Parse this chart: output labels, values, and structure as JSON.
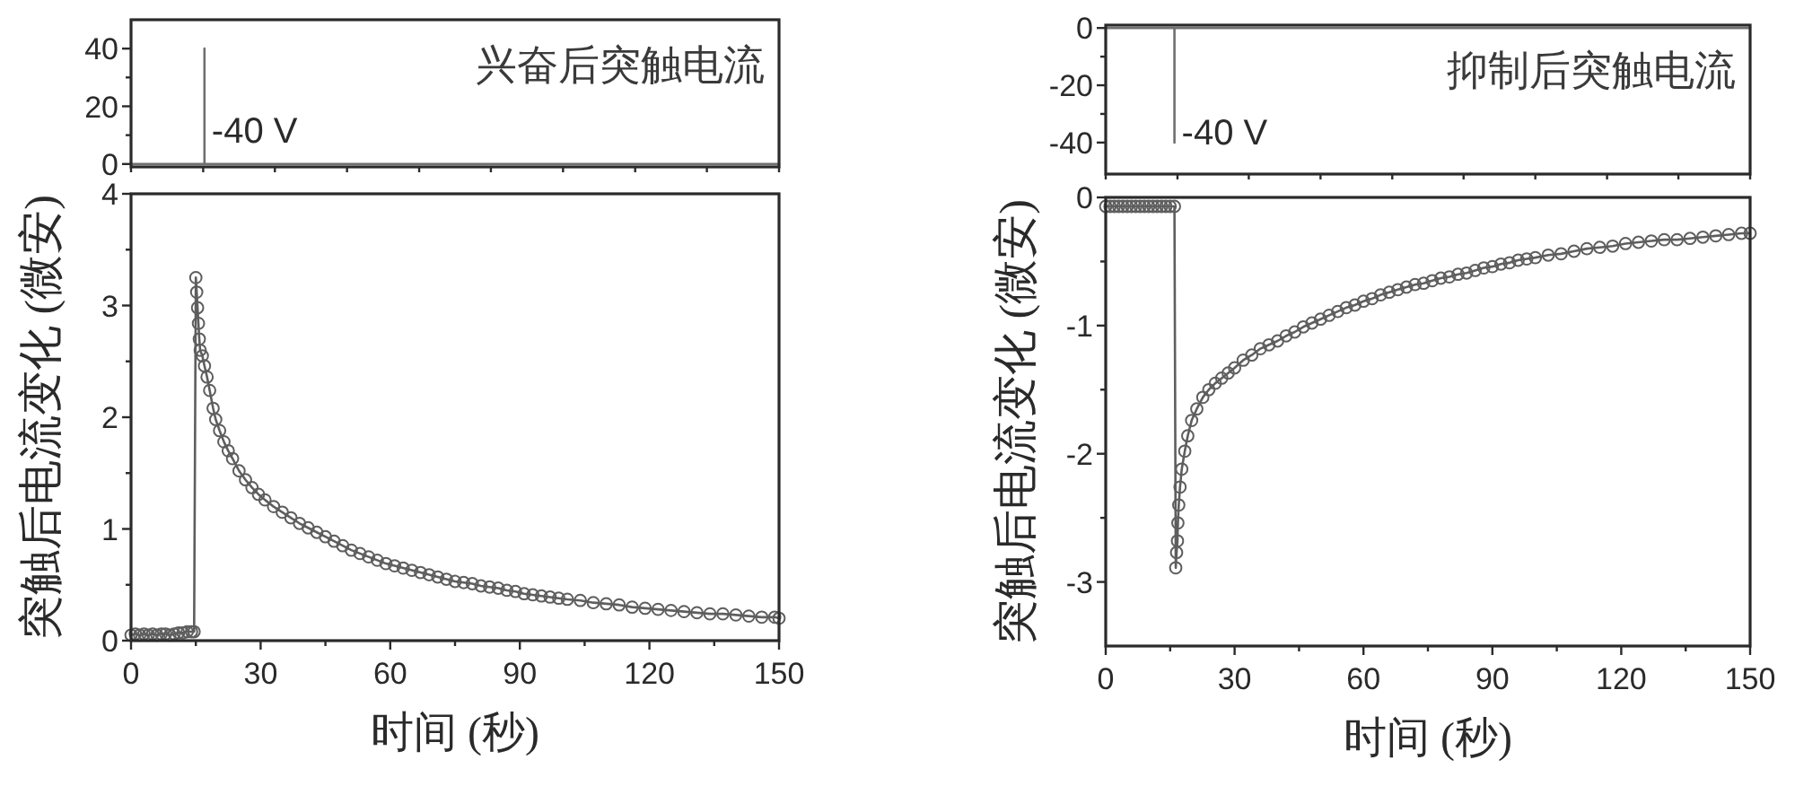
{
  "chart_data": [
    {
      "type": "line",
      "title": "兴奋后突触电流",
      "x": [
        0,
        17,
        17,
        17,
        150
      ],
      "values": [
        0,
        0,
        40,
        0,
        0
      ],
      "color": "#707070",
      "xlim": [
        0,
        150
      ],
      "xticks": [
        {
          "value": 0,
          "label": null
        },
        {
          "value": 16.7,
          "label": null
        },
        {
          "value": 33.3,
          "label": null
        },
        {
          "value": 50,
          "label": null
        },
        {
          "value": 66.7,
          "label": null
        },
        {
          "value": 83.3,
          "label": null
        },
        {
          "value": 100,
          "label": null
        },
        {
          "value": 116.7,
          "label": null
        },
        {
          "value": 133.3,
          "label": null
        },
        {
          "value": 150,
          "label": null
        }
      ],
      "ylim": [
        -1,
        50
      ],
      "yticks": [
        0,
        {
          "value": 10,
          "label": null
        },
        20,
        {
          "value": 30,
          "label": null
        },
        40
      ],
      "tick_labels": "y",
      "annotations": [
        {
          "text": "-40 V",
          "x": 17,
          "y": 12
        }
      ]
    },
    {
      "type": "line",
      "xlabel": "时间 (秒)",
      "ylabel": "突触后电流变化 (微安)",
      "marker": "circle",
      "color": "#5e5e5e",
      "x": [
        0,
        1,
        2,
        3,
        4,
        5,
        6,
        7,
        8,
        9,
        10,
        11,
        12,
        13,
        14,
        14.6,
        15,
        15.2,
        15.4,
        15.6,
        15.8,
        16,
        16.5,
        17,
        17.6,
        18.2,
        19,
        19.6,
        20.5,
        21.5,
        22.5,
        23.5,
        25,
        26.5,
        28,
        29.5,
        31,
        33,
        35,
        37,
        39,
        41,
        43,
        45,
        47,
        49,
        51,
        53,
        55,
        57,
        59,
        61,
        63,
        65,
        67,
        69,
        71,
        73,
        75,
        77,
        79,
        81,
        83,
        85,
        87,
        89,
        91,
        93,
        95,
        97,
        99,
        101,
        104,
        107,
        110,
        113,
        116,
        119,
        122,
        125,
        128,
        131,
        134,
        137,
        140,
        143,
        146,
        149,
        150
      ],
      "values": [
        0.05,
        0.06,
        0.05,
        0.06,
        0.05,
        0.06,
        0.05,
        0.06,
        0.06,
        0.05,
        0.06,
        0.07,
        0.07,
        0.08,
        0.08,
        0.08,
        3.25,
        3.12,
        2.98,
        2.84,
        2.7,
        2.6,
        2.55,
        2.46,
        2.36,
        2.24,
        2.08,
        1.98,
        1.88,
        1.78,
        1.7,
        1.63,
        1.52,
        1.44,
        1.37,
        1.31,
        1.26,
        1.2,
        1.15,
        1.1,
        1.05,
        1.01,
        0.97,
        0.93,
        0.89,
        0.85,
        0.81,
        0.78,
        0.75,
        0.72,
        0.69,
        0.67,
        0.65,
        0.63,
        0.61,
        0.59,
        0.57,
        0.55,
        0.53,
        0.52,
        0.51,
        0.49,
        0.48,
        0.47,
        0.45,
        0.44,
        0.42,
        0.41,
        0.4,
        0.39,
        0.38,
        0.37,
        0.36,
        0.34,
        0.33,
        0.32,
        0.3,
        0.29,
        0.28,
        0.27,
        0.26,
        0.25,
        0.24,
        0.24,
        0.23,
        0.22,
        0.21,
        0.21,
        0.2
      ],
      "xlim": [
        0,
        150
      ],
      "xticks": [
        0,
        {
          "value": 15,
          "label": null
        },
        30,
        {
          "value": 45,
          "label": null
        },
        60,
        {
          "value": 75,
          "label": null
        },
        90,
        {
          "value": 105,
          "label": null
        },
        120,
        {
          "value": 135,
          "label": null
        },
        150
      ],
      "ylim": [
        0,
        4
      ],
      "yticks": [
        0,
        {
          "value": 0.5,
          "label": null
        },
        1,
        {
          "value": 1.5,
          "label": null
        },
        2,
        {
          "value": 2.5,
          "label": null
        },
        3,
        {
          "value": 3.5,
          "label": null
        },
        4
      ]
    },
    {
      "type": "line",
      "title": "抑制后突触电流",
      "x": [
        0,
        16,
        16,
        16,
        150
      ],
      "values": [
        0,
        0,
        -40,
        0,
        0
      ],
      "color": "#707070",
      "xlim": [
        0,
        150
      ],
      "xticks": [
        {
          "value": 0,
          "label": null
        },
        {
          "value": 16.7,
          "label": null
        },
        {
          "value": 33.3,
          "label": null
        },
        {
          "value": 50,
          "label": null
        },
        {
          "value": 66.7,
          "label": null
        },
        {
          "value": 83.3,
          "label": null
        },
        {
          "value": 100,
          "label": null
        },
        {
          "value": 116.7,
          "label": null
        },
        {
          "value": 133.3,
          "label": null
        },
        {
          "value": 150,
          "label": null
        }
      ],
      "ylim": [
        -51,
        1
      ],
      "yticks": [
        -40,
        {
          "value": -30,
          "label": null
        },
        -20,
        {
          "value": -10,
          "label": null
        },
        0
      ],
      "tick_labels": "y",
      "annotations": [
        {
          "text": "-40 V",
          "x": 16,
          "y": -36
        }
      ]
    },
    {
      "type": "line",
      "xlabel": "时间 (秒)",
      "ylabel": "突触后电流变化 (微安)",
      "marker": "circle",
      "color": "#5e5e5e",
      "x": [
        0,
        1,
        2,
        3,
        4,
        5,
        6,
        7,
        8,
        9,
        10,
        11,
        12,
        13,
        14,
        15,
        16,
        16.3,
        16.5,
        16.7,
        16.8,
        17,
        17.3,
        17.7,
        18.4,
        19.1,
        20,
        21.2,
        22.6,
        24,
        25.5,
        27,
        28.5,
        30,
        32,
        34,
        36,
        38,
        40,
        42,
        44,
        46,
        48,
        50,
        52,
        54,
        56,
        58,
        60,
        62,
        64,
        66,
        68,
        70,
        72,
        74,
        76,
        78,
        80,
        82,
        84,
        86,
        88,
        90,
        92,
        94,
        96,
        98,
        100,
        103,
        106,
        109,
        112,
        115,
        118,
        121,
        124,
        127,
        130,
        133,
        136,
        139,
        142,
        145,
        148,
        150
      ],
      "values": [
        -0.07,
        -0.07,
        -0.07,
        -0.07,
        -0.07,
        -0.07,
        -0.07,
        -0.07,
        -0.07,
        -0.07,
        -0.07,
        -0.07,
        -0.07,
        -0.07,
        -0.07,
        -0.07,
        -0.07,
        -2.89,
        -2.77,
        -2.68,
        -2.54,
        -2.4,
        -2.26,
        -2.12,
        -1.98,
        -1.86,
        -1.74,
        -1.65,
        -1.56,
        -1.5,
        -1.45,
        -1.41,
        -1.37,
        -1.33,
        -1.27,
        -1.23,
        -1.18,
        -1.15,
        -1.12,
        -1.08,
        -1.05,
        -1.01,
        -0.98,
        -0.95,
        -0.92,
        -0.89,
        -0.86,
        -0.84,
        -0.81,
        -0.79,
        -0.76,
        -0.74,
        -0.72,
        -0.7,
        -0.68,
        -0.67,
        -0.65,
        -0.63,
        -0.62,
        -0.6,
        -0.59,
        -0.57,
        -0.55,
        -0.54,
        -0.52,
        -0.51,
        -0.49,
        -0.48,
        -0.47,
        -0.45,
        -0.44,
        -0.42,
        -0.4,
        -0.39,
        -0.38,
        -0.36,
        -0.35,
        -0.34,
        -0.33,
        -0.33,
        -0.32,
        -0.31,
        -0.3,
        -0.29,
        -0.28,
        -0.28
      ],
      "xlim": [
        0,
        150
      ],
      "xticks": [
        0,
        {
          "value": 15,
          "label": null
        },
        30,
        {
          "value": 45,
          "label": null
        },
        60,
        {
          "value": 75,
          "label": null
        },
        90,
        {
          "value": 105,
          "label": null
        },
        120,
        {
          "value": 135,
          "label": null
        },
        150
      ],
      "ylim": [
        -3.5,
        0
      ],
      "yticks": [
        -3,
        {
          "value": -2.5,
          "label": null
        },
        -2,
        {
          "value": -1.5,
          "label": null
        },
        -1,
        {
          "value": -0.5,
          "label": null
        },
        0
      ]
    }
  ]
}
